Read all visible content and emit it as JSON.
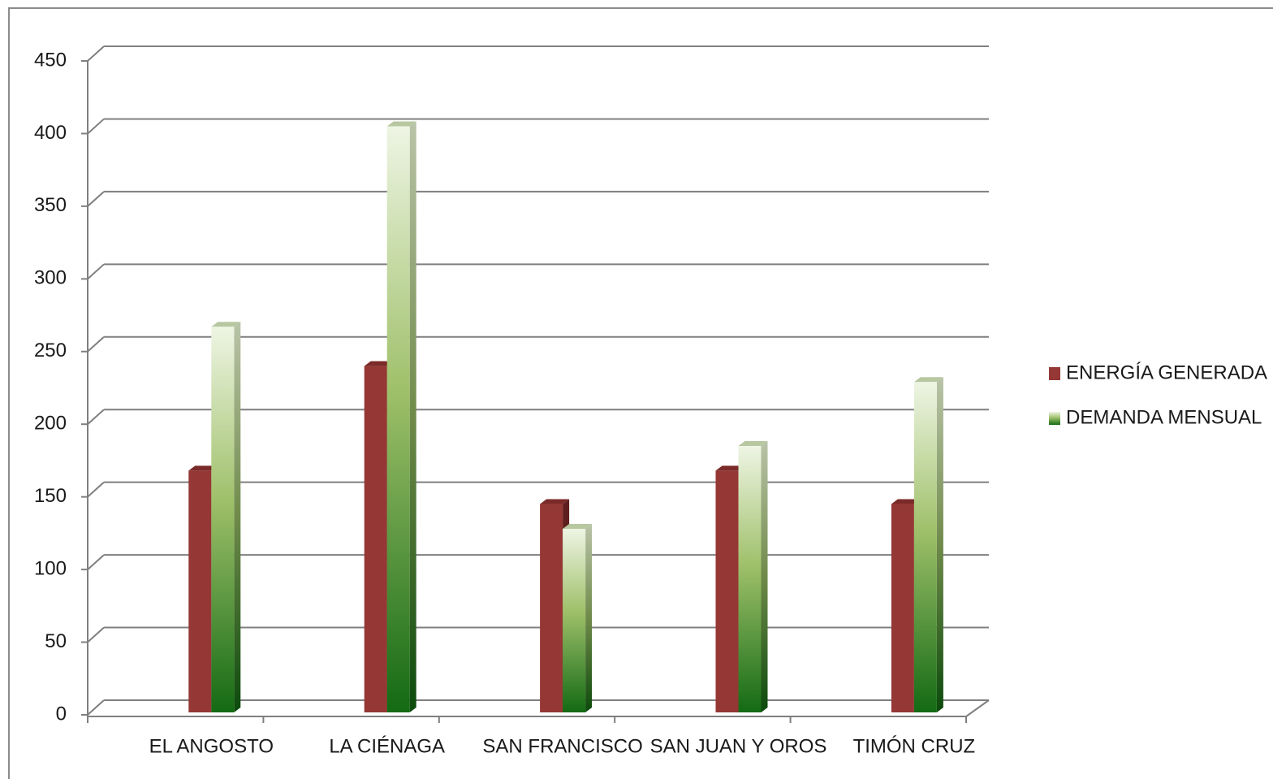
{
  "chart_data": {
    "type": "bar3d",
    "categories": [
      "EL ANGOSTO",
      "LA CIÉNAGA",
      "SAN FRANCISCO",
      "SAN JUAN Y OROS",
      "TIMÓN CRUZ"
    ],
    "series": [
      {
        "name": "ENERGÍA GENERADA",
        "color": "#953735",
        "values": [
          163,
          235,
          140,
          163,
          140
        ]
      },
      {
        "name": "DEMANDA MENSUAL",
        "color": "#2e8b2e",
        "values": [
          262,
          400,
          123,
          180,
          224
        ]
      }
    ],
    "ylim": [
      0,
      450
    ],
    "yticks": [
      0,
      50,
      100,
      150,
      200,
      250,
      300,
      350,
      400,
      450
    ],
    "grid": true,
    "legend": "right"
  }
}
